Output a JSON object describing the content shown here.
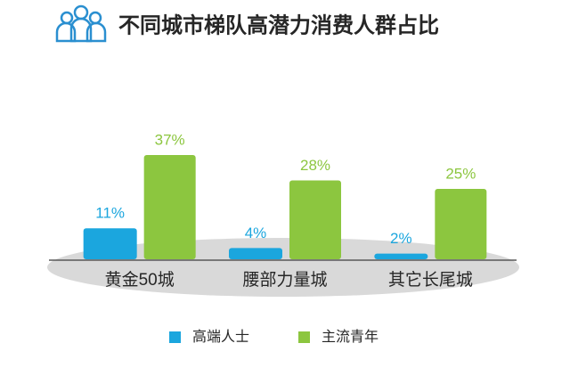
{
  "chart_data": {
    "type": "bar",
    "title": "不同城市梯队高潜力消费人群占比",
    "categories": [
      "黄金50城",
      "腰部力量城",
      "其它长尾城"
    ],
    "series": [
      {
        "name": "高端人士",
        "color": "#1ba6de",
        "values": [
          11,
          4,
          2
        ],
        "value_labels": [
          "11%",
          "4%",
          "2%"
        ]
      },
      {
        "name": "主流青年",
        "color": "#8cc63f",
        "values": [
          37,
          28,
          25
        ],
        "value_labels": [
          "37%",
          "28%",
          "25%"
        ]
      }
    ]
  }
}
